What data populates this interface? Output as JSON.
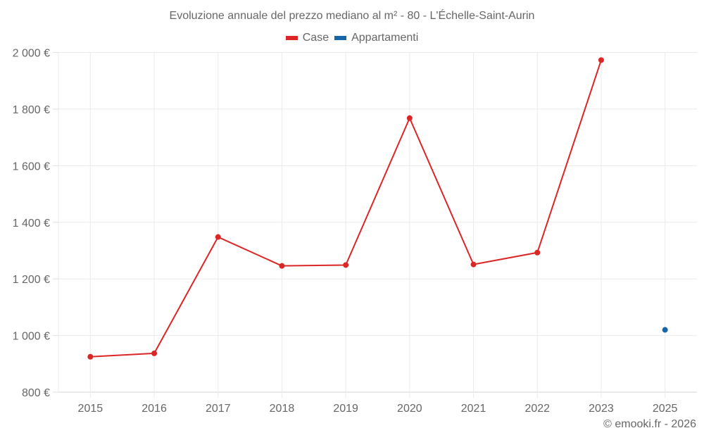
{
  "chart_data": {
    "type": "line",
    "title": "Evoluzione annuale del prezzo mediano al m² - 80 - L'Échelle-Saint-Aurin",
    "xlabel": "",
    "ylabel": "",
    "categories": [
      "2015",
      "2016",
      "2017",
      "2018",
      "2019",
      "2020",
      "2021",
      "2022",
      "2023",
      "2025"
    ],
    "series": [
      {
        "name": "Case",
        "color": "#dc2626",
        "values": [
          925,
          937,
          1348,
          1246,
          1249,
          1768,
          1251,
          1293,
          1973,
          null
        ]
      },
      {
        "name": "Appartamenti",
        "color": "#1565a8",
        "values": [
          null,
          null,
          null,
          null,
          null,
          null,
          null,
          null,
          null,
          1020
        ]
      }
    ],
    "ylim": [
      800,
      2000
    ],
    "yticks": [
      800,
      1000,
      1200,
      1400,
      1600,
      1800,
      2000
    ],
    "ytick_labels": [
      "800 €",
      "1 000 €",
      "1 200 €",
      "1 400 €",
      "1 600 €",
      "1 800 €",
      "2 000 €"
    ],
    "grid": true,
    "legend_position": "top"
  },
  "header": {
    "title": "Evoluzione annuale del prezzo mediano al m² - 80 - L'Échelle-Saint-Aurin"
  },
  "legend": {
    "items": [
      {
        "label": "Case",
        "color": "#dc2626"
      },
      {
        "label": "Appartamenti",
        "color": "#1565a8"
      }
    ]
  },
  "footer": {
    "credit": "© emooki.fr - 2026"
  }
}
